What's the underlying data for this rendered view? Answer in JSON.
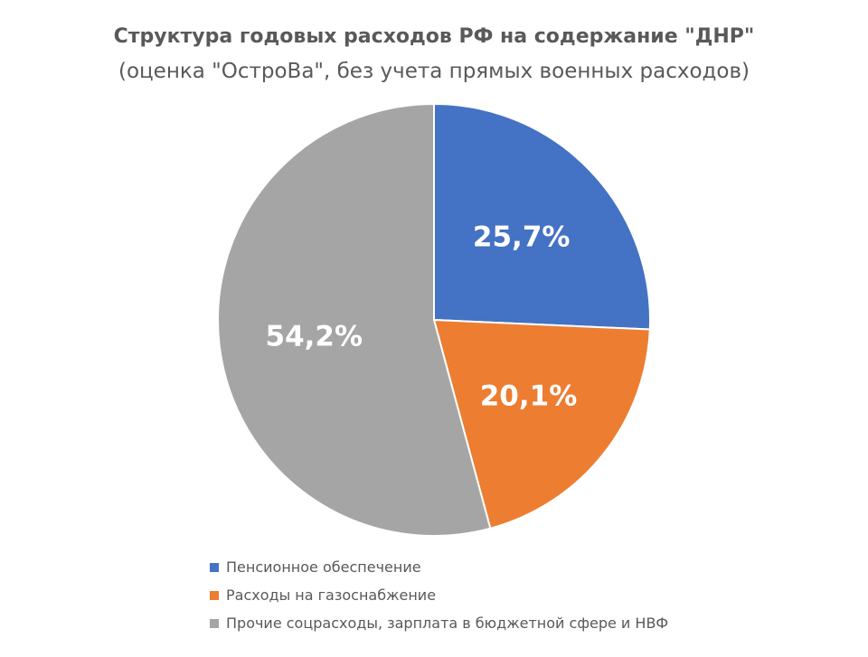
{
  "chart_data": {
    "type": "pie",
    "title": "Структура годовых расходов РФ на содержание \"ДНР\"",
    "subtitle": "(оценка \"ОстроВа\", без учета прямых военных расходов)",
    "slices": [
      {
        "label": "Пенсионное обеспечение",
        "value": 25.7,
        "display": "25,7%",
        "color": "#4472C4"
      },
      {
        "label": "Расходы на газоснабжение",
        "value": 20.1,
        "display": "20,1%",
        "color": "#ED7D31"
      },
      {
        "label": "Прочие соцрасходы, зарплата в бюджетной сфере и НВФ",
        "value": 54.2,
        "display": "54,2%",
        "color": "#A5A5A5"
      }
    ],
    "legend_position": "bottom"
  }
}
